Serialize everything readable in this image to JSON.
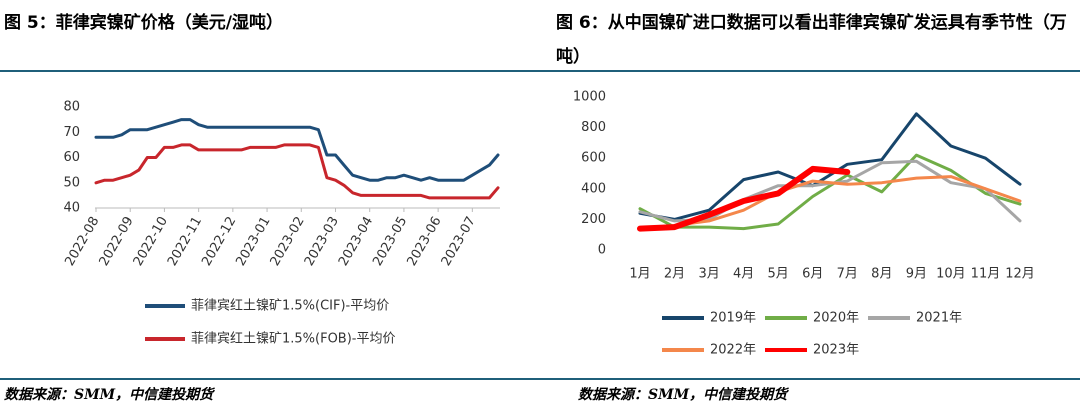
{
  "chart_data": [
    {
      "type": "line",
      "title": "图 5：菲律宾镍矿价格（美元/湿吨）",
      "source": "数据来源：SMM，中信建投期货",
      "categories": [
        "2022-08",
        null,
        null,
        null,
        "2022-09",
        null,
        null,
        null,
        "2022-10",
        null,
        null,
        null,
        "2022-11",
        null,
        null,
        null,
        "2022-12",
        null,
        null,
        null,
        "2023-01",
        null,
        null,
        null,
        "2023-02",
        null,
        null,
        null,
        "2023-03",
        null,
        null,
        null,
        "2023-04",
        null,
        null,
        null,
        "2023-05",
        null,
        null,
        null,
        "2023-06",
        null,
        null,
        null,
        "2023-07",
        null,
        null,
        null
      ],
      "series": [
        {
          "name": "菲律宾红土镍矿1.5%(CIF)-平均价",
          "color": "#1f4e79",
          "values": [
            68,
            68,
            68,
            69,
            71,
            71,
            71,
            72,
            73,
            74,
            75,
            75,
            73,
            72,
            72,
            72,
            72,
            72,
            72,
            72,
            72,
            72,
            72,
            72,
            72,
            72,
            71,
            61,
            61,
            57,
            53,
            52,
            51,
            51,
            52,
            52,
            53,
            52,
            51,
            52,
            51,
            51,
            51,
            51,
            53,
            55,
            57,
            61
          ]
        },
        {
          "name": "菲律宾红土镍矿1.5%(FOB)-平均价",
          "color": "#c8262c",
          "values": [
            50,
            51,
            51,
            52,
            53,
            55,
            60,
            60,
            64,
            64,
            65,
            65,
            63,
            63,
            63,
            63,
            63,
            63,
            64,
            64,
            64,
            64,
            65,
            65,
            65,
            65,
            64,
            52,
            51,
            49,
            46,
            45,
            45,
            45,
            45,
            45,
            45,
            45,
            45,
            44,
            44,
            44,
            44,
            44,
            44,
            44,
            44,
            48
          ]
        }
      ],
      "ylim": [
        40,
        80
      ],
      "yticks": [
        40,
        50,
        60,
        70,
        80
      ]
    },
    {
      "type": "line",
      "title": "图 6：从中国镍矿进口数据可以看出菲律宾镍矿发运具有季节性（万吨）",
      "source": "数据来源：SMM，中信建投期货",
      "categories": [
        "1月",
        "2月",
        "3月",
        "4月",
        "5月",
        "6月",
        "7月",
        "8月",
        "9月",
        "10月",
        "11月",
        "12月"
      ],
      "series": [
        {
          "name": "2019年",
          "color": "#17456b",
          "values": [
            240,
            200,
            260,
            460,
            510,
            420,
            560,
            590,
            890,
            680,
            600,
            430
          ]
        },
        {
          "name": "2020年",
          "color": "#70ad47",
          "values": [
            270,
            150,
            150,
            140,
            170,
            350,
            490,
            380,
            620,
            520,
            370,
            300
          ]
        },
        {
          "name": "2021年",
          "color": "#a6a6a6",
          "values": [
            250,
            190,
            200,
            330,
            420,
            420,
            450,
            570,
            580,
            440,
            400,
            190
          ]
        },
        {
          "name": "2022年",
          "color": "#f4874b",
          "values": [
            140,
            160,
            190,
            260,
            380,
            450,
            430,
            440,
            470,
            480,
            400,
            320
          ]
        },
        {
          "name": "2023年",
          "color": "#ff0000",
          "values": [
            140,
            150,
            230,
            320,
            370,
            530,
            510,
            null,
            null,
            null,
            null,
            null
          ]
        }
      ],
      "ylim": [
        0,
        1000
      ],
      "yticks": [
        0,
        200,
        400,
        600,
        800,
        1000
      ]
    }
  ]
}
